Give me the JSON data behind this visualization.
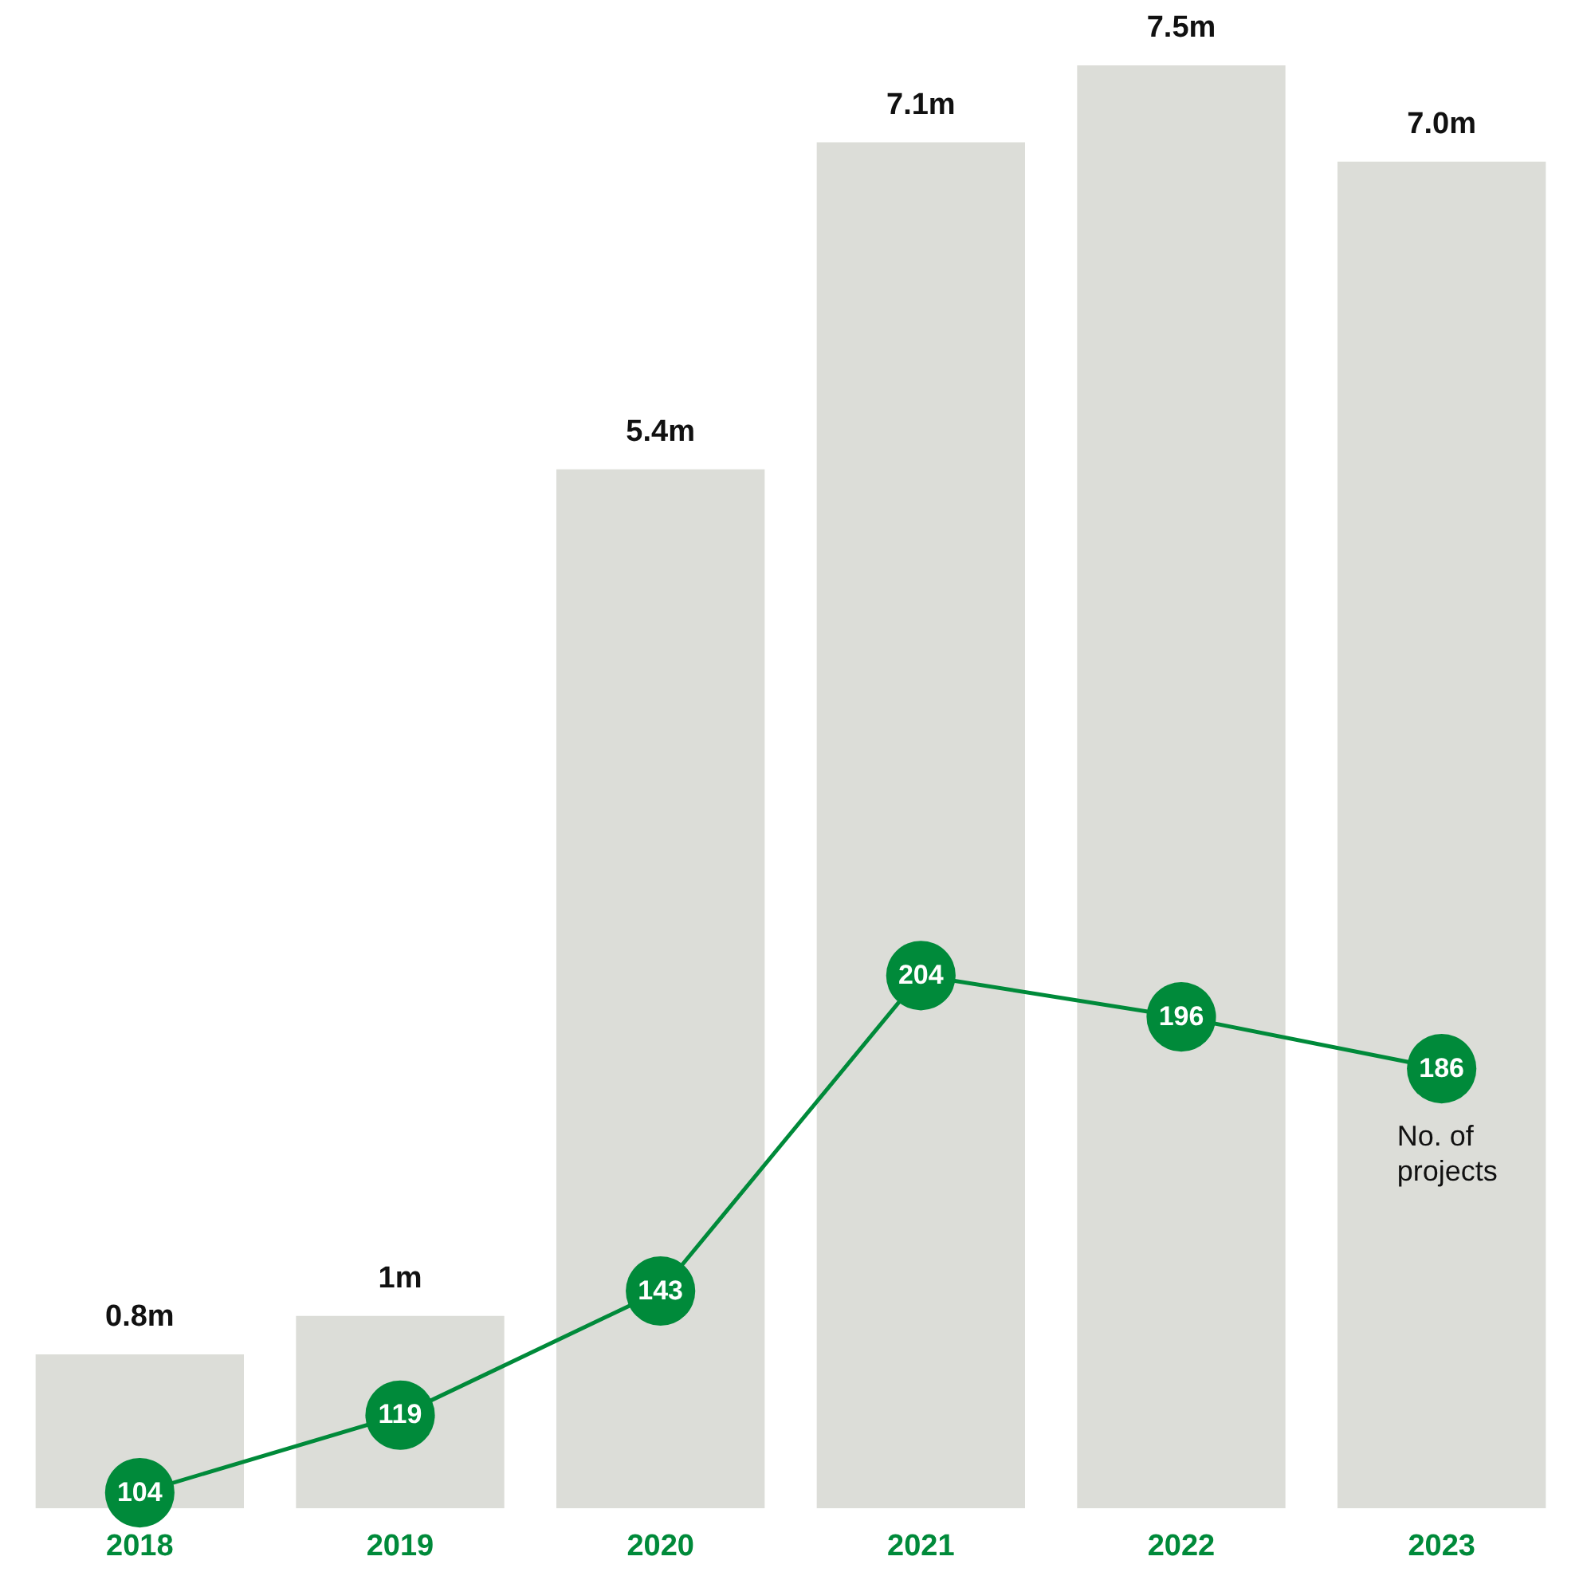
{
  "chart_data": {
    "type": "bar",
    "categories": [
      "2018",
      "2019",
      "2020",
      "2021",
      "2022",
      "2023"
    ],
    "series": [
      {
        "color": "#dcddd8",
        "values": [
          0.8,
          1,
          5.4,
          7.1,
          7.5,
          7.0
        ],
        "value_labels": [
          "0.8m",
          "1m",
          "5.4m",
          "7.1m",
          "7.5m",
          "7.0m"
        ]
      },
      {
        "type": "line",
        "name": "No. of projects",
        "color": "#008a3a",
        "axis": "y2",
        "values": [
          104,
          119,
          143,
          204,
          196,
          186
        ],
        "value_labels": [
          "104",
          "119",
          "143",
          "204",
          "196",
          "186"
        ]
      }
    ],
    "ylim": [
      0,
      7.5
    ],
    "y2lim": [
      101,
      380
    ],
    "tick_labels": "x",
    "grid": false,
    "legend": false,
    "marker": "circle",
    "line_style": "solid"
  }
}
